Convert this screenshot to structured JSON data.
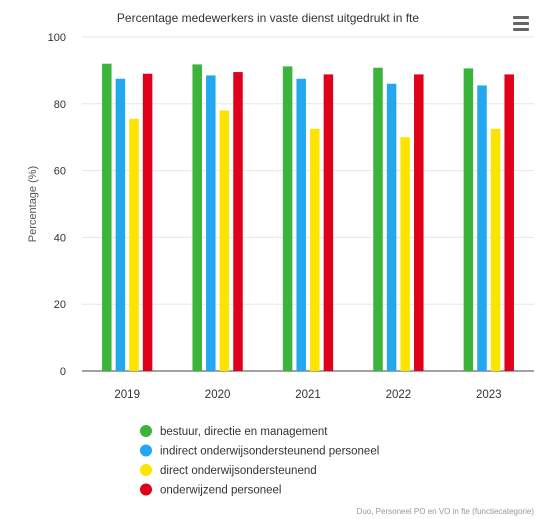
{
  "chart_data": {
    "type": "bar",
    "title": "Percentage medewerkers in vaste dienst uitgedrukt in fte",
    "ylabel": "Percentage (%)",
    "xlabel": "",
    "ylim": [
      0,
      100
    ],
    "yticks": [
      0,
      20,
      40,
      60,
      80,
      100
    ],
    "grid": true,
    "legend_position": "bottom",
    "categories": [
      "2019",
      "2020",
      "2021",
      "2022",
      "2023"
    ],
    "series": [
      {
        "name": "bestuur, directie en management",
        "color": "#3cb43c",
        "values": [
          92,
          91.8,
          91.2,
          90.8,
          90.6
        ]
      },
      {
        "name": "indirect onderwijsondersteunend personeel",
        "color": "#22a7f0",
        "values": [
          87.5,
          88.5,
          87.5,
          86,
          85.5
        ]
      },
      {
        "name": "direct onderwijsondersteunend",
        "color": "#fce300",
        "values": [
          75.5,
          78,
          72.5,
          70,
          72.5
        ]
      },
      {
        "name": "onderwijzend personeel",
        "color": "#e0001b",
        "values": [
          89,
          89.5,
          88.8,
          88.8,
          88.8
        ]
      }
    ]
  },
  "credit": "Duo, Personeel PO en VO in fte (functiecategorie)",
  "menu_icon": "hamburger-menu-icon"
}
